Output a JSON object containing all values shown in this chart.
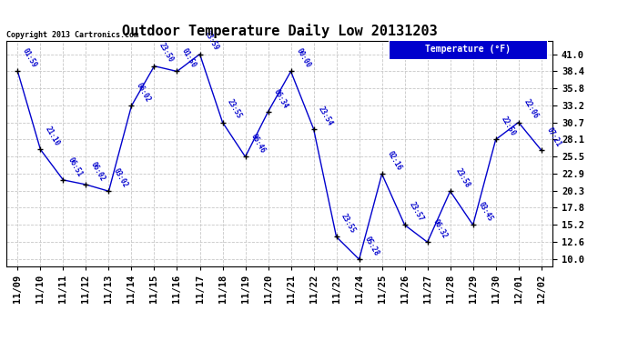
{
  "title": "Outdoor Temperature Daily Low 20131203",
  "copyright_text": "Copyright 2013 Cartronics.com",
  "legend_label": "Temperature (°F)",
  "x_labels": [
    "11/09",
    "11/10",
    "11/11",
    "11/12",
    "11/13",
    "11/14",
    "11/15",
    "11/16",
    "11/17",
    "11/18",
    "11/19",
    "11/20",
    "11/21",
    "11/22",
    "11/23",
    "11/24",
    "11/25",
    "11/26",
    "11/27",
    "11/28",
    "11/29",
    "11/30",
    "12/01",
    "12/02"
  ],
  "temperatures": [
    38.4,
    26.6,
    22.0,
    21.3,
    20.3,
    33.2,
    39.2,
    38.4,
    41.0,
    30.7,
    25.5,
    32.3,
    38.4,
    29.7,
    13.4,
    10.0,
    22.9,
    15.2,
    12.6,
    20.3,
    15.2,
    28.1,
    30.7,
    26.5
  ],
  "time_labels": [
    "01:59",
    "21:10",
    "06:51",
    "06:02",
    "03:02",
    "06:02",
    "23:50",
    "01:50",
    "23:59",
    "23:55",
    "06:46",
    "06:34",
    "00:00",
    "23:54",
    "23:55",
    "05:28",
    "02:16",
    "23:57",
    "06:32",
    "23:58",
    "03:45",
    "22:50",
    "22:06",
    "07:21"
  ],
  "y_ticks": [
    10.0,
    12.6,
    15.2,
    17.8,
    20.3,
    22.9,
    25.5,
    28.1,
    30.7,
    33.2,
    35.8,
    38.4,
    41.0
  ],
  "ylim": [
    9.0,
    43.0
  ],
  "xlim": [
    -0.5,
    23.5
  ],
  "line_color": "#0000cd",
  "marker_color": "#000000",
  "bg_color": "#ffffff",
  "grid_color": "#c8c8c8",
  "title_fontsize": 11,
  "tick_fontsize": 7.5,
  "time_label_fontsize": 5.5,
  "copyright_fontsize": 6,
  "legend_fontsize": 7,
  "legend_bg": "#0000cd",
  "legend_fg": "#ffffff"
}
